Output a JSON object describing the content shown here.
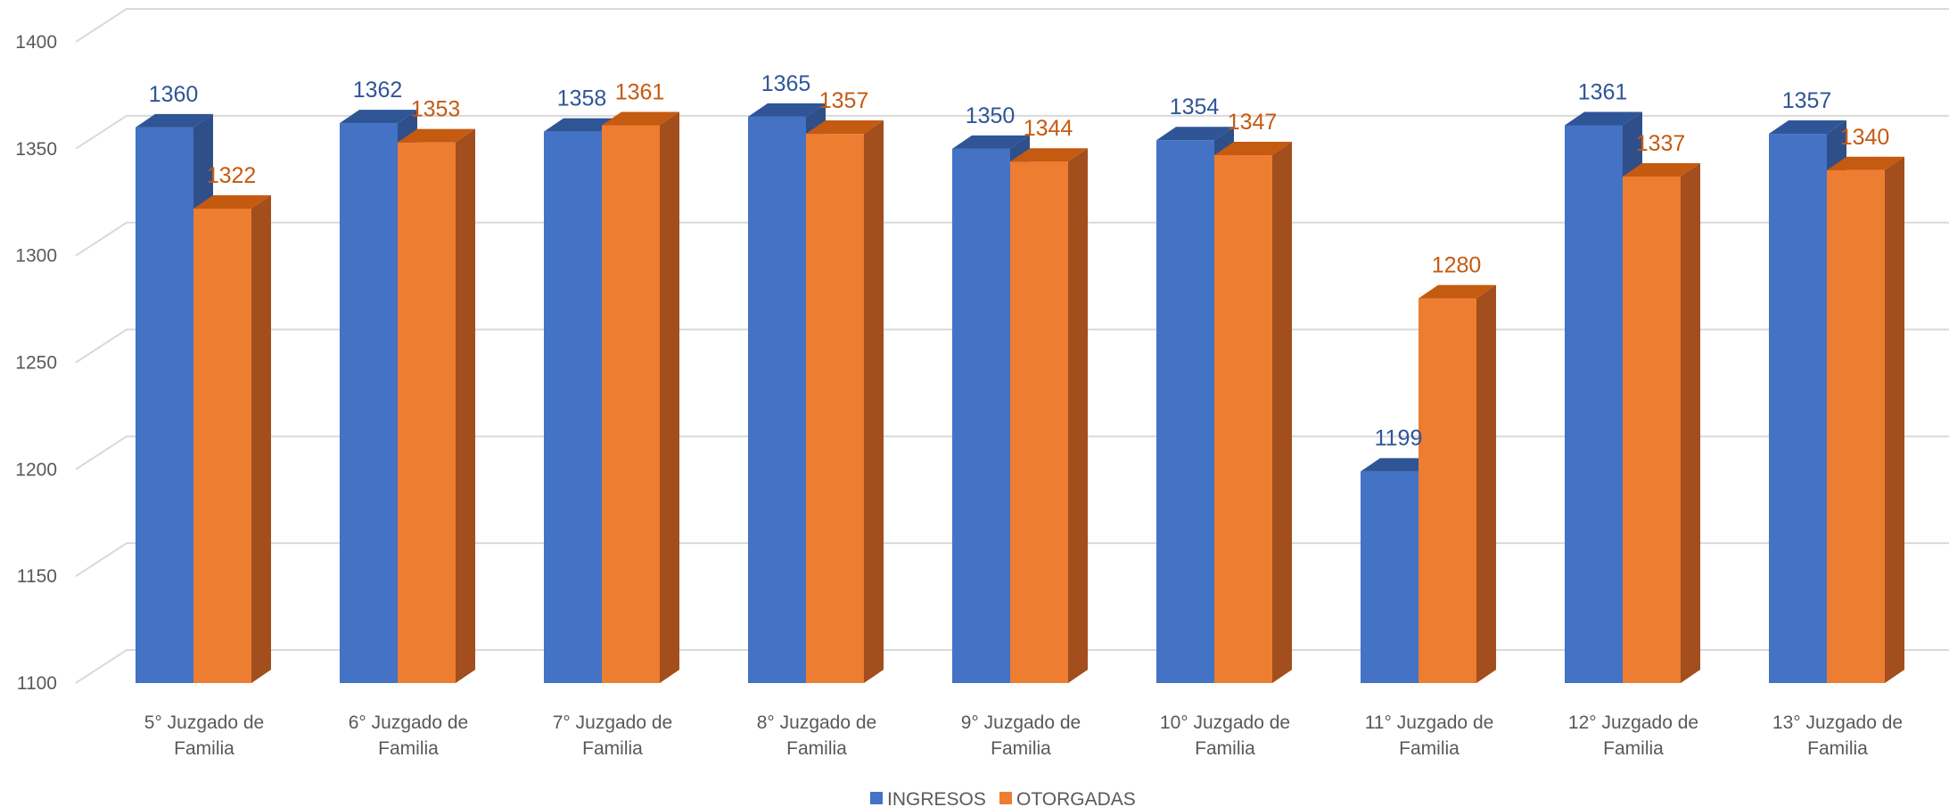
{
  "chart_data": {
    "type": "bar",
    "categories": [
      [
        "5° Juzgado de",
        "Familia"
      ],
      [
        "6° Juzgado de",
        "Familia"
      ],
      [
        "7° Juzgado de",
        "Familia"
      ],
      [
        "8° Juzgado de",
        "Familia"
      ],
      [
        "9° Juzgado de",
        "Familia"
      ],
      [
        "10° Juzgado de",
        "Familia"
      ],
      [
        "11° Juzgado de",
        "Familia"
      ],
      [
        "12° Juzgado de",
        "Familia"
      ],
      [
        "13° Juzgado de",
        "Familia"
      ]
    ],
    "series": [
      {
        "name": "INGRESOS",
        "values": [
          1360,
          1362,
          1358,
          1365,
          1350,
          1354,
          1199,
          1361,
          1357
        ]
      },
      {
        "name": "OTORGADAS",
        "values": [
          1322,
          1353,
          1361,
          1357,
          1344,
          1347,
          1280,
          1337,
          1340
        ]
      }
    ],
    "yticks": [
      1100,
      1150,
      1200,
      1250,
      1300,
      1350,
      1400
    ],
    "ylim": [
      1100,
      1400
    ],
    "grid": true,
    "legend_position": "bottom",
    "style": "3d-clustered-column"
  },
  "colors": {
    "INGRESOS": {
      "front": "#4472C4",
      "top": "#2F5597",
      "side": "#2F4F8A",
      "label": "#2F5597"
    },
    "OTORGADAS": {
      "front": "#ED7D31",
      "top": "#C55A11",
      "side": "#A34E1D",
      "label": "#C55A11"
    },
    "grid": "#D9D9D9",
    "tick": "#595959"
  }
}
